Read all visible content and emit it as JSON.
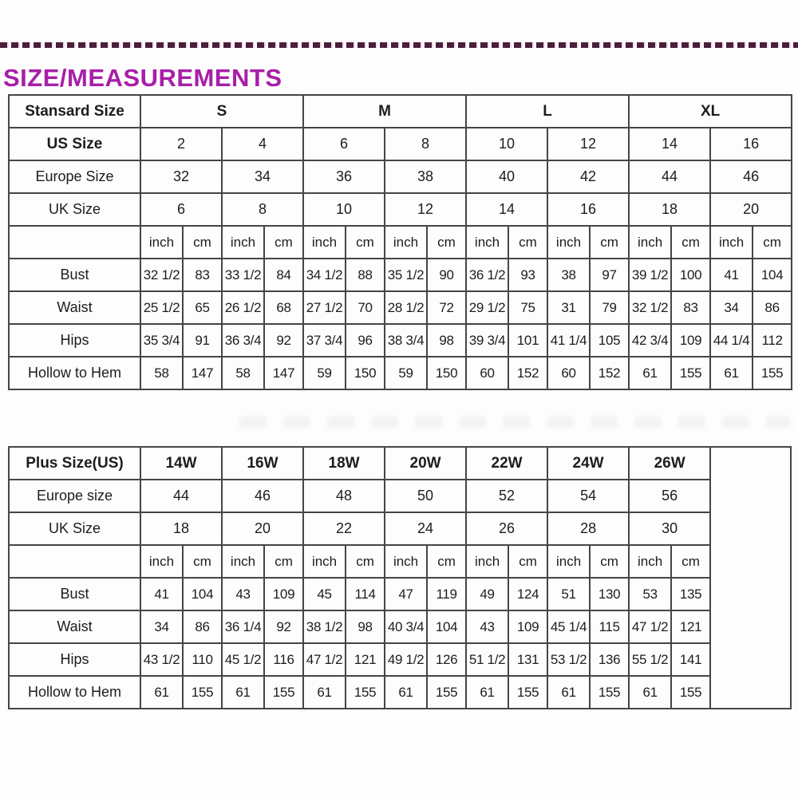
{
  "page": {
    "title": "SIZE/MEASUREMENTS"
  },
  "colors": {
    "title_text": "#A81EA8",
    "dash_line": "#4B1F3C",
    "table_border": "#454545",
    "cell_text": "#1D1D1D",
    "background": "#FDFDFD"
  },
  "units": [
    "inch",
    "cm"
  ],
  "standard_table": {
    "corner_label": "Stansard Size",
    "size_groups": [
      "S",
      "M",
      "L",
      "XL"
    ],
    "size_rows": [
      {
        "label": "US Size",
        "bold": true,
        "values": [
          "2",
          "4",
          "6",
          "8",
          "10",
          "12",
          "14",
          "16"
        ]
      },
      {
        "label": "Europe Size",
        "bold": false,
        "values": [
          "32",
          "34",
          "36",
          "38",
          "40",
          "42",
          "44",
          "46"
        ]
      },
      {
        "label": "UK Size",
        "bold": false,
        "values": [
          "6",
          "8",
          "10",
          "12",
          "14",
          "16",
          "18",
          "20"
        ]
      }
    ],
    "measure_rows": [
      {
        "label": "Bust",
        "pairs": [
          [
            "32 1/2",
            "83"
          ],
          [
            "33 1/2",
            "84"
          ],
          [
            "34 1/2",
            "88"
          ],
          [
            "35 1/2",
            "90"
          ],
          [
            "36 1/2",
            "93"
          ],
          [
            "38",
            "97"
          ],
          [
            "39 1/2",
            "100"
          ],
          [
            "41",
            "104"
          ]
        ]
      },
      {
        "label": "Waist",
        "pairs": [
          [
            "25 1/2",
            "65"
          ],
          [
            "26 1/2",
            "68"
          ],
          [
            "27 1/2",
            "70"
          ],
          [
            "28 1/2",
            "72"
          ],
          [
            "29 1/2",
            "75"
          ],
          [
            "31",
            "79"
          ],
          [
            "32 1/2",
            "83"
          ],
          [
            "34",
            "86"
          ]
        ]
      },
      {
        "label": "Hips",
        "pairs": [
          [
            "35 3/4",
            "91"
          ],
          [
            "36 3/4",
            "92"
          ],
          [
            "37 3/4",
            "96"
          ],
          [
            "38 3/4",
            "98"
          ],
          [
            "39 3/4",
            "101"
          ],
          [
            "41 1/4",
            "105"
          ],
          [
            "42 3/4",
            "109"
          ],
          [
            "44 1/4",
            "112"
          ]
        ]
      },
      {
        "label": "Hollow to Hem",
        "pairs": [
          [
            "58",
            "147"
          ],
          [
            "58",
            "147"
          ],
          [
            "59",
            "150"
          ],
          [
            "59",
            "150"
          ],
          [
            "60",
            "152"
          ],
          [
            "60",
            "152"
          ],
          [
            "61",
            "155"
          ],
          [
            "61",
            "155"
          ]
        ]
      }
    ]
  },
  "plus_table": {
    "corner_label": "Plus Size(US)",
    "size_groups": [
      "14W",
      "16W",
      "18W",
      "20W",
      "22W",
      "24W",
      "26W"
    ],
    "size_rows": [
      {
        "label": "Europe size",
        "bold": false,
        "values": [
          "44",
          "46",
          "48",
          "50",
          "52",
          "54",
          "56"
        ]
      },
      {
        "label": "UK Size",
        "bold": false,
        "values": [
          "18",
          "20",
          "22",
          "24",
          "26",
          "28",
          "30"
        ]
      }
    ],
    "measure_rows": [
      {
        "label": "Bust",
        "pairs": [
          [
            "41",
            "104"
          ],
          [
            "43",
            "109"
          ],
          [
            "45",
            "114"
          ],
          [
            "47",
            "119"
          ],
          [
            "49",
            "124"
          ],
          [
            "51",
            "130"
          ],
          [
            "53",
            "135"
          ]
        ]
      },
      {
        "label": "Waist",
        "pairs": [
          [
            "34",
            "86"
          ],
          [
            "36 1/4",
            "92"
          ],
          [
            "38 1/2",
            "98"
          ],
          [
            "40 3/4",
            "104"
          ],
          [
            "43",
            "109"
          ],
          [
            "45 1/4",
            "115"
          ],
          [
            "47 1/2",
            "121"
          ]
        ]
      },
      {
        "label": "Hips",
        "pairs": [
          [
            "43 1/2",
            "110"
          ],
          [
            "45 1/2",
            "116"
          ],
          [
            "47 1/2",
            "121"
          ],
          [
            "49 1/2",
            "126"
          ],
          [
            "51 1/2",
            "131"
          ],
          [
            "53 1/2",
            "136"
          ],
          [
            "55 1/2",
            "141"
          ]
        ]
      },
      {
        "label": "Hollow to Hem",
        "pairs": [
          [
            "61",
            "155"
          ],
          [
            "61",
            "155"
          ],
          [
            "61",
            "155"
          ],
          [
            "61",
            "155"
          ],
          [
            "61",
            "155"
          ],
          [
            "61",
            "155"
          ],
          [
            "61",
            "155"
          ]
        ]
      }
    ],
    "has_trailing_empty_column": true
  }
}
